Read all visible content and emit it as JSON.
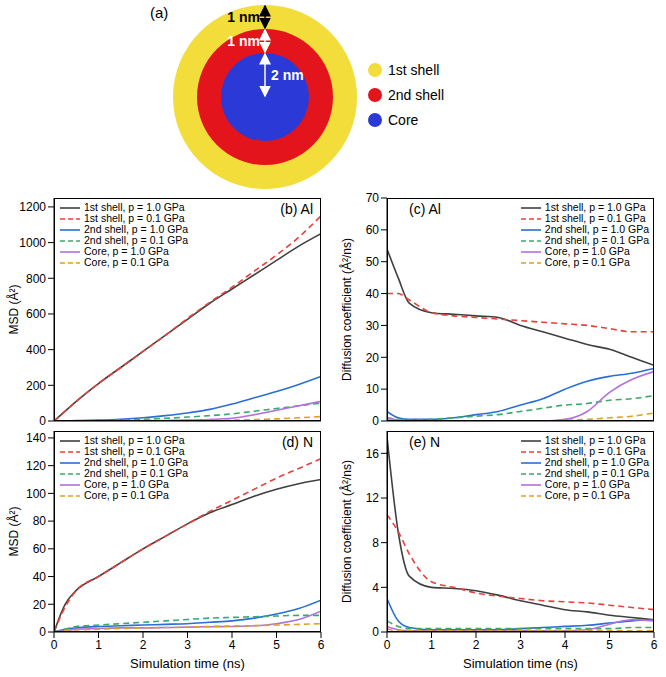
{
  "diagram": {
    "panel": "(a)",
    "dimensions": [
      {
        "label": "1 nm",
        "color": "#000000"
      },
      {
        "label": "1 nm",
        "color": "#ffffff"
      },
      {
        "label": "2 nm",
        "color": "#ffffff"
      }
    ],
    "legend": [
      {
        "name": "1st shell",
        "color": "#f2dd3a"
      },
      {
        "name": "2nd shell",
        "color": "#e3141b"
      },
      {
        "name": "Core",
        "color": "#2b3ad6"
      }
    ]
  },
  "chart_data": [
    {
      "type": "line",
      "title": "(b) Al",
      "y_label": "MSD (Å²)",
      "legend": "top-left",
      "tick_labels": "y",
      "grid": false,
      "x": [
        0,
        0.25,
        0.5,
        1,
        1.5,
        2,
        2.5,
        3,
        3.5,
        4,
        4.5,
        5,
        5.5,
        6
      ],
      "xlim": [
        0,
        6
      ],
      "xticks": [
        0,
        1,
        2,
        3,
        4,
        5,
        6
      ],
      "ylim": [
        0,
        1250
      ],
      "yticks": [
        0,
        200,
        400,
        600,
        800,
        1000,
        1200
      ],
      "series": [
        {
          "name": "1st shell, p = 1.0 GPa",
          "color": "#404040",
          "line_style": "solid",
          "values": [
            0,
            55,
            110,
            210,
            300,
            390,
            480,
            570,
            660,
            740,
            820,
            900,
            980,
            1050
          ]
        },
        {
          "name": "1st shell, p = 0.1 GPa",
          "color": "#e8403a",
          "line_style": "dashed",
          "values": [
            0,
            55,
            110,
            210,
            300,
            390,
            480,
            575,
            665,
            750,
            840,
            930,
            1030,
            1150
          ]
        },
        {
          "name": "2nd shell, p = 1.0 GPa",
          "color": "#2a6ed6",
          "line_style": "solid",
          "values": [
            0,
            1,
            2,
            5,
            10,
            18,
            30,
            45,
            65,
            95,
            130,
            165,
            205,
            250
          ]
        },
        {
          "name": "2nd shell, p = 0.1 GPa",
          "color": "#3aaa6a",
          "line_style": "dashed",
          "values": [
            0,
            1,
            1,
            2,
            5,
            10,
            15,
            22,
            30,
            40,
            55,
            70,
            85,
            100
          ]
        },
        {
          "name": "Core, p = 1.0 GPa",
          "color": "#b070e0",
          "line_style": "solid",
          "values": [
            0,
            0,
            0,
            0,
            1,
            2,
            3,
            5,
            8,
            15,
            35,
            60,
            85,
            110
          ]
        },
        {
          "name": "Core, p = 0.1 GPa",
          "color": "#e0a020",
          "line_style": "dashed",
          "values": [
            0,
            0,
            0,
            0,
            0,
            1,
            1,
            2,
            3,
            5,
            8,
            12,
            18,
            25
          ]
        }
      ]
    },
    {
      "type": "line",
      "title": "(c) Al",
      "y_label": "Diffusion coefficient (Å²/ns)",
      "legend": "top-right",
      "tick_labels": "y",
      "grid": false,
      "x": [
        0,
        0.25,
        0.5,
        1,
        1.5,
        2,
        2.5,
        3,
        3.5,
        4,
        4.5,
        5,
        5.5,
        6
      ],
      "xlim": [
        0,
        6
      ],
      "xticks": [
        0,
        1,
        2,
        3,
        4,
        5,
        6
      ],
      "ylim": [
        0,
        70
      ],
      "yticks": [
        0,
        10,
        20,
        30,
        40,
        50,
        60,
        70
      ],
      "series": [
        {
          "name": "1st shell, p = 1.0 GPa",
          "color": "#404040",
          "line_style": "solid",
          "values": [
            54,
            45,
            37,
            34,
            33.5,
            33,
            32.5,
            30,
            28,
            26,
            24,
            22.5,
            20,
            17.5
          ]
        },
        {
          "name": "1st shell, p = 0.1 GPa",
          "color": "#e8403a",
          "line_style": "dashed",
          "values": [
            40,
            40,
            38,
            34,
            33,
            32.5,
            32,
            31.5,
            31,
            30.5,
            30,
            29,
            28,
            28
          ]
        },
        {
          "name": "2nd shell, p = 1.0 GPa",
          "color": "#2a6ed6",
          "line_style": "solid",
          "values": [
            3,
            1,
            0.5,
            0.5,
            1,
            2,
            3,
            5,
            7,
            10,
            12.5,
            14,
            15,
            16.5
          ]
        },
        {
          "name": "2nd shell, p = 0.1 GPa",
          "color": "#3aaa6a",
          "line_style": "dashed",
          "values": [
            1,
            0.5,
            0.3,
            0.5,
            1,
            1.5,
            2,
            3,
            4,
            5,
            5.5,
            6.5,
            7,
            8
          ]
        },
        {
          "name": "Core, p = 1.0 GPa",
          "color": "#b070e0",
          "line_style": "solid",
          "values": [
            1,
            0.3,
            0,
            0,
            0,
            0,
            0,
            0,
            0,
            0.5,
            3,
            9,
            13,
            15.5
          ]
        },
        {
          "name": "Core, p = 0.1 GPa",
          "color": "#e0a020",
          "line_style": "dashed",
          "values": [
            0.5,
            0.2,
            0,
            0,
            0,
            0,
            0,
            0,
            0,
            0.2,
            0.5,
            1,
            1.5,
            2.5
          ]
        }
      ]
    },
    {
      "type": "line",
      "title": "(d) N",
      "x_label": "Simulation time (ns)",
      "y_label": "MSD (Å²)",
      "legend": "top-left",
      "tick_labels": true,
      "grid": false,
      "x": [
        0,
        0.25,
        0.5,
        1,
        1.5,
        2,
        2.5,
        3,
        3.5,
        4,
        4.5,
        5,
        5.5,
        6
      ],
      "xlim": [
        0,
        6
      ],
      "xticks": [
        0,
        1,
        2,
        3,
        4,
        5,
        6
      ],
      "ylim": [
        0,
        145
      ],
      "yticks": [
        0,
        20,
        40,
        60,
        80,
        100,
        120,
        140
      ],
      "series": [
        {
          "name": "1st shell, p = 1.0 GPa",
          "color": "#404040",
          "line_style": "solid",
          "values": [
            0,
            20,
            30,
            40,
            50,
            60,
            69,
            78,
            86,
            92,
            98,
            103,
            107,
            110
          ]
        },
        {
          "name": "1st shell, p = 0.1 GPa",
          "color": "#e8403a",
          "line_style": "dashed",
          "values": [
            0,
            18,
            30,
            40,
            50,
            60,
            69,
            78,
            87,
            95,
            103,
            111,
            118,
            125
          ]
        },
        {
          "name": "2nd shell, p = 1.0 GPa",
          "color": "#2a6ed6",
          "line_style": "solid",
          "values": [
            0,
            2,
            3,
            4,
            4.5,
            5,
            5.5,
            6,
            7,
            8,
            10,
            13,
            17,
            23
          ]
        },
        {
          "name": "2nd shell, p = 0.1 GPa",
          "color": "#3aaa6a",
          "line_style": "dashed",
          "values": [
            0,
            2,
            4,
            5,
            6,
            7,
            8,
            9,
            10,
            10.5,
            11,
            11.5,
            12,
            12
          ]
        },
        {
          "name": "Core, p = 1.0 GPa",
          "color": "#b070e0",
          "line_style": "solid",
          "values": [
            0,
            1,
            2,
            2.5,
            3,
            3,
            3.2,
            3.5,
            3.8,
            4,
            4.5,
            6,
            9,
            15
          ]
        },
        {
          "name": "Core, p = 0.1 GPa",
          "color": "#e0a020",
          "line_style": "dashed",
          "values": [
            0,
            1,
            1.5,
            2,
            2.5,
            3,
            3.2,
            3.5,
            4,
            4.3,
            4.6,
            5,
            5.5,
            6
          ]
        }
      ]
    },
    {
      "type": "line",
      "title": "(e) N",
      "x_label": "Simulation time (ns)",
      "y_label": "Diffusion coefficient (Å²/ns)",
      "legend": "top-right",
      "tick_labels": true,
      "grid": false,
      "x": [
        0,
        0.25,
        0.5,
        1,
        1.5,
        2,
        2.5,
        3,
        3.5,
        4,
        4.5,
        5,
        5.5,
        6
      ],
      "xlim": [
        0,
        6
      ],
      "xticks": [
        0,
        1,
        2,
        3,
        4,
        5,
        6
      ],
      "ylim": [
        0,
        18
      ],
      "yticks": [
        0,
        4,
        8,
        12,
        16
      ],
      "series": [
        {
          "name": "1st shell, p = 1.0 GPa",
          "color": "#404040",
          "line_style": "solid",
          "values": [
            17.5,
            9,
            5,
            4,
            3.9,
            3.7,
            3.3,
            2.8,
            2.4,
            2,
            1.8,
            1.5,
            1.3,
            1.1
          ]
        },
        {
          "name": "1st shell, p = 0.1 GPa",
          "color": "#e8403a",
          "line_style": "dashed",
          "values": [
            10.5,
            9,
            7,
            4.5,
            4,
            3.5,
            3.2,
            3,
            2.8,
            2.7,
            2.6,
            2.4,
            2.2,
            2
          ]
        },
        {
          "name": "2nd shell, p = 1.0 GPa",
          "color": "#2a6ed6",
          "line_style": "solid",
          "values": [
            3,
            1,
            0.4,
            0.2,
            0.2,
            0.2,
            0.2,
            0.3,
            0.4,
            0.5,
            0.6,
            0.8,
            1,
            1.1
          ]
        },
        {
          "name": "2nd shell, p = 0.1 GPa",
          "color": "#3aaa6a",
          "line_style": "dashed",
          "values": [
            1,
            0.5,
            0.3,
            0.3,
            0.3,
            0.3,
            0.3,
            0.3,
            0.3,
            0.3,
            0.3,
            0.3,
            0.4,
            0.4
          ]
        },
        {
          "name": "Core, p = 1.0 GPa",
          "color": "#b070e0",
          "line_style": "solid",
          "values": [
            0.5,
            0.2,
            0.1,
            0.1,
            0.1,
            0.1,
            0.1,
            0.1,
            0.1,
            0.1,
            0.2,
            0.7,
            1.1,
            1
          ]
        },
        {
          "name": "Core, p = 0.1 GPa",
          "color": "#e0a020",
          "line_style": "dashed",
          "values": [
            0.3,
            0.1,
            0.1,
            0.1,
            0.1,
            0.1,
            0.1,
            0.1,
            0.1,
            0.1,
            0.1,
            0.1,
            0.1,
            0.1
          ]
        }
      ]
    }
  ]
}
